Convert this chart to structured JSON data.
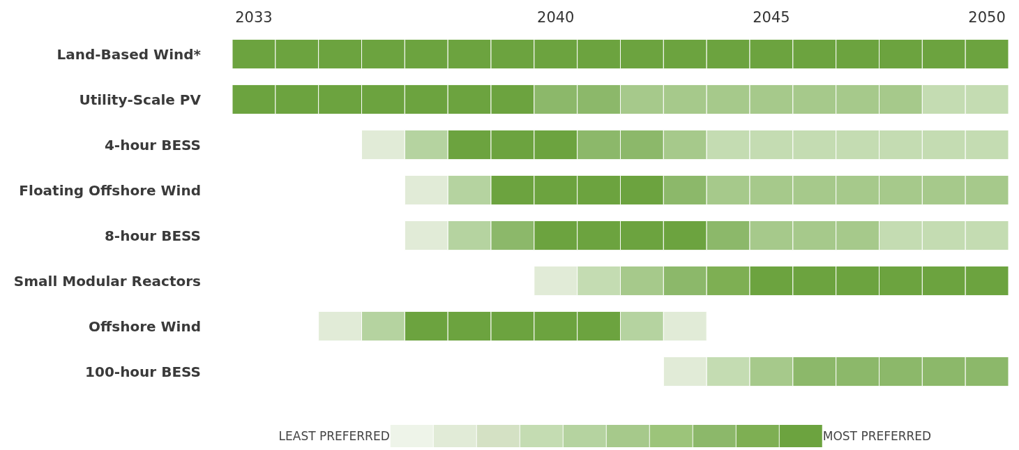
{
  "chart_data": {
    "type": "heatmap",
    "categories": [
      "2033",
      null,
      null,
      null,
      null,
      null,
      null,
      "2040",
      null,
      null,
      null,
      null,
      "2045",
      null,
      null,
      null,
      null,
      "2050"
    ],
    "y_categories": [
      "Land-Based Wind*",
      "Utility-Scale PV",
      "4-hour BESS",
      "Floating Offshore Wind",
      "8-hour BESS",
      "Small Modular Reactors",
      "Offshore Wind",
      "100-hour BESS"
    ],
    "cells": [
      [
        10,
        10,
        10,
        10,
        10,
        10,
        10,
        10,
        10,
        10,
        10,
        10,
        10,
        10,
        10,
        10,
        10,
        10
      ],
      [
        10,
        10,
        10,
        10,
        10,
        10,
        10,
        8,
        8,
        6,
        6,
        6,
        6,
        6,
        6,
        6,
        4,
        4
      ],
      [
        null,
        null,
        null,
        2,
        5,
        10,
        10,
        10,
        8,
        8,
        6,
        4,
        4,
        4,
        4,
        4,
        4,
        4
      ],
      [
        null,
        null,
        null,
        null,
        2,
        5,
        10,
        10,
        10,
        10,
        8,
        6,
        6,
        6,
        6,
        6,
        6,
        6
      ],
      [
        null,
        null,
        null,
        null,
        2,
        5,
        8,
        10,
        10,
        10,
        10,
        8,
        6,
        6,
        6,
        4,
        4,
        4
      ],
      [
        null,
        null,
        null,
        null,
        null,
        null,
        null,
        2,
        4,
        6,
        8,
        9,
        10,
        10,
        10,
        10,
        10,
        10
      ],
      [
        null,
        null,
        2,
        5,
        10,
        10,
        10,
        10,
        10,
        5,
        2,
        null,
        null,
        null,
        null,
        null,
        null,
        null
      ],
      [
        null,
        null,
        null,
        null,
        null,
        null,
        null,
        null,
        null,
        null,
        2,
        4,
        6,
        8,
        8,
        8,
        8,
        8
      ]
    ],
    "colors": [
      "#eef4e9",
      "#e1ebd7",
      "#d4e1c4",
      "#c4dcb2",
      "#b5d3a0",
      "#a6c98b",
      "#9cc47a",
      "#8cb86a",
      "#7eaf53",
      "#6ca33f"
    ],
    "cticks": [
      {
        "value": -1.2,
        "label": "LEAST PREFERRED"
      },
      {
        "value": 12.1,
        "label": "MOST PREFERRED"
      }
    ]
  }
}
